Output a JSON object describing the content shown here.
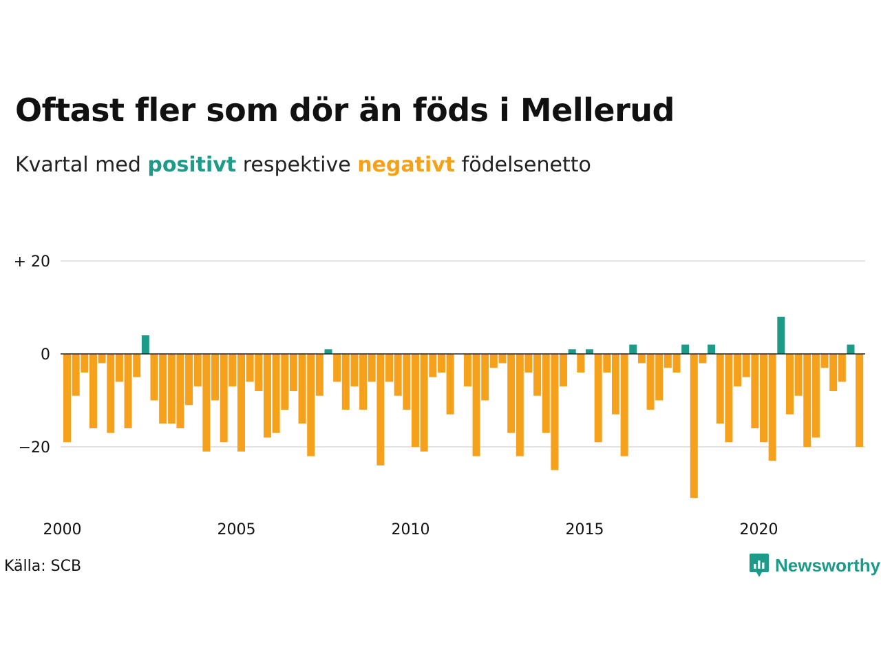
{
  "title": "Oftast fler som dör än föds i Mellerud",
  "subtitle": {
    "prefix": "Kvartal med ",
    "positive": "positivt",
    "middle": " respektive ",
    "negative": "negativt",
    "suffix": " födelsenetto"
  },
  "colors": {
    "positive": "#1e9a88",
    "negative": "#f5a11c",
    "grid": "#e3e3e3",
    "zero_line": "#222222"
  },
  "source": "Källa: SCB",
  "brand": {
    "name": "Newsworthy",
    "icon": "newsworthy-logo-icon"
  },
  "chart_data": {
    "type": "bar",
    "x_start": "2000 Q1",
    "frequency": "quarterly",
    "y_ticks": [
      {
        "value": 20,
        "label": "+ 20"
      },
      {
        "value": 0,
        "label": "0"
      },
      {
        "value": -20,
        "label": "−20"
      }
    ],
    "x_ticks": [
      "2000",
      "2005",
      "2010",
      "2015",
      "2020"
    ],
    "ylim": [
      -32,
      22
    ],
    "grid": true,
    "values": [
      -19,
      -9,
      -4,
      -16,
      -2,
      -17,
      -6,
      -16,
      -5,
      4,
      -10,
      -15,
      -15,
      -16,
      -11,
      -7,
      -21,
      -10,
      -19,
      -7,
      -21,
      -6,
      -8,
      -18,
      -17,
      -12,
      -8,
      -15,
      -22,
      -9,
      1,
      -6,
      -12,
      -7,
      -12,
      -6,
      -24,
      -6,
      -9,
      -12,
      -20,
      -21,
      -5,
      -4,
      -13,
      0,
      -7,
      -22,
      -10,
      -3,
      -2,
      -17,
      -22,
      -4,
      -9,
      -17,
      -25,
      -7,
      1,
      -4,
      1,
      -19,
      -4,
      -13,
      -22,
      2,
      -2,
      -12,
      -10,
      -3,
      -4,
      2,
      -31,
      -2,
      2,
      -15,
      -19,
      -7,
      -5,
      -16,
      -19,
      -23,
      8,
      -13,
      -9,
      -20,
      -18,
      -3,
      -8,
      -6,
      2,
      -20
    ]
  }
}
